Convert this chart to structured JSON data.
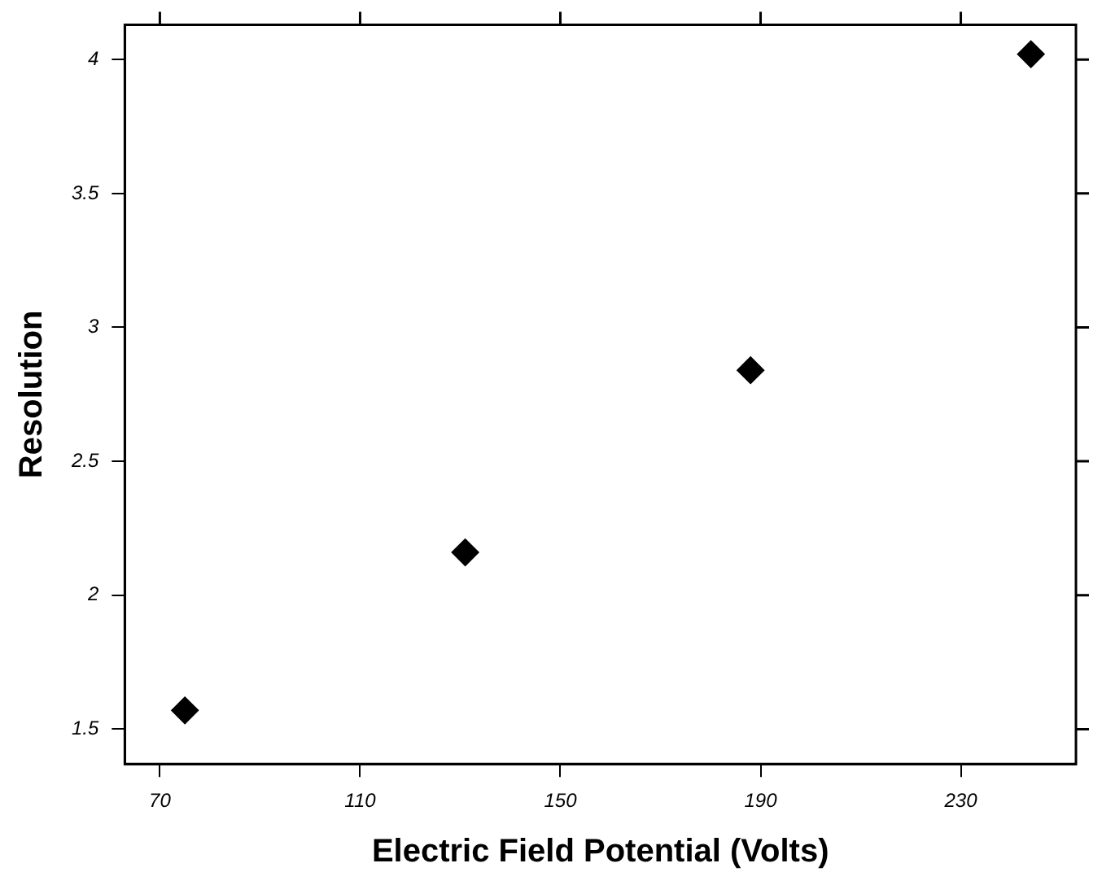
{
  "chart_data": {
    "type": "scatter",
    "xlabel": "Electric Field Potential (Volts)",
    "ylabel": "Resolution",
    "x": [
      75,
      131,
      188,
      244
    ],
    "series": [
      {
        "color": "#000000",
        "values": [
          1.57,
          2.16,
          2.84,
          4.02
        ]
      }
    ],
    "xlim": [
      63,
      253
    ],
    "xticks": [
      70,
      110,
      150,
      190,
      230
    ],
    "ylim": [
      1.37,
      4.13
    ],
    "yticks": [
      1.5,
      2,
      2.5,
      3,
      3.5,
      4
    ],
    "grid": false,
    "legend": false,
    "marker": "diamond"
  }
}
